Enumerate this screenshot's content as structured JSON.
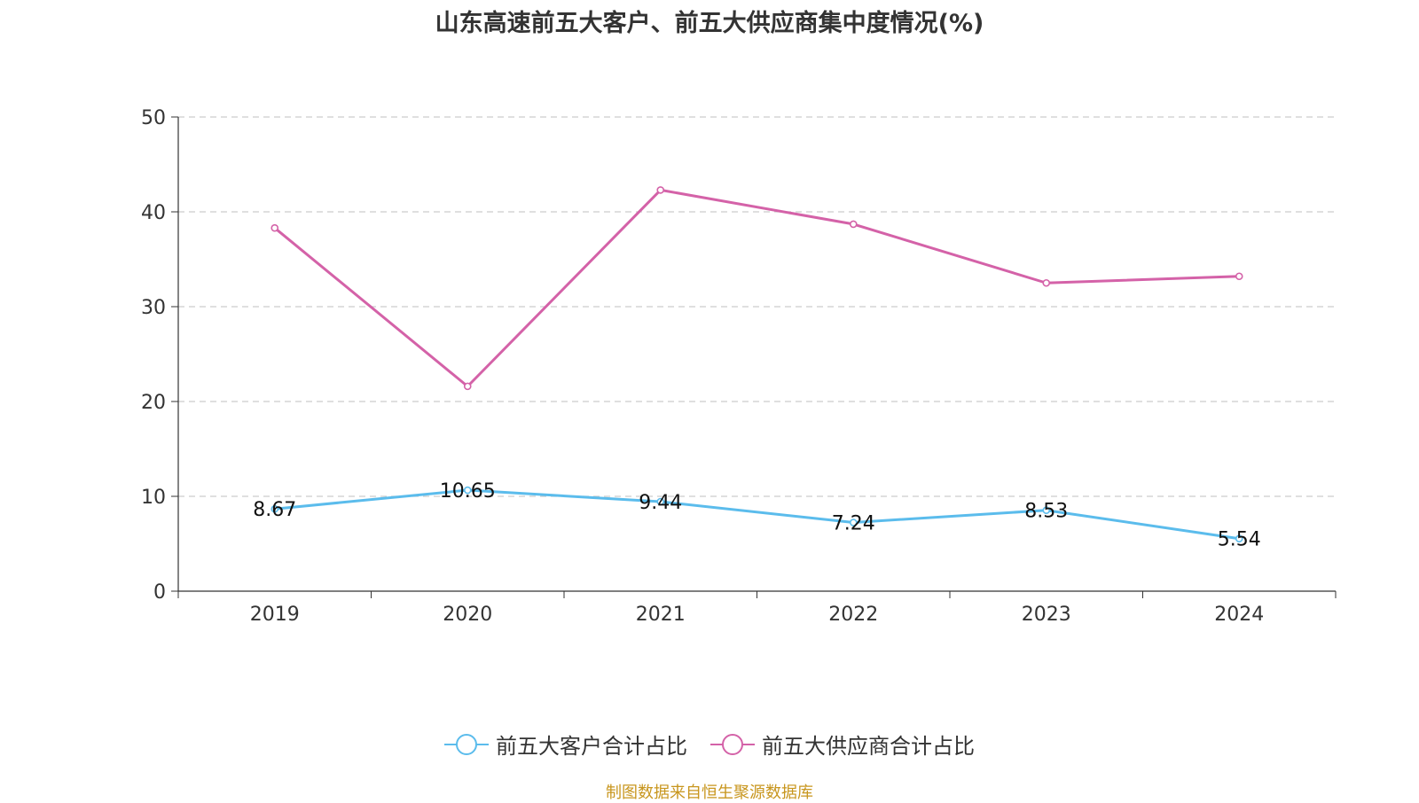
{
  "chart_data": {
    "type": "line",
    "title": "山东高速前五大客户、前五大供应商集中度情况(%)",
    "categories": [
      "2019",
      "2020",
      "2021",
      "2022",
      "2023",
      "2024"
    ],
    "ylim": [
      0,
      50
    ],
    "yticks": [
      0,
      10,
      20,
      30,
      40,
      50
    ],
    "grid": true,
    "legend_position": "bottom",
    "series": [
      {
        "name": "前五大客户合计占比",
        "values": [
          8.67,
          10.65,
          9.44,
          7.24,
          8.53,
          5.54
        ],
        "labels": [
          "8.67",
          "10.65",
          "9.44",
          "7.24",
          "8.53",
          "5.54"
        ],
        "color": "#5bbcec"
      },
      {
        "name": "前五大供应商合计占比",
        "values": [
          38.3,
          21.6,
          42.3,
          38.7,
          32.5,
          33.2
        ],
        "color": "#d462a8"
      }
    ]
  },
  "source": "制图数据来自恒生聚源数据库"
}
